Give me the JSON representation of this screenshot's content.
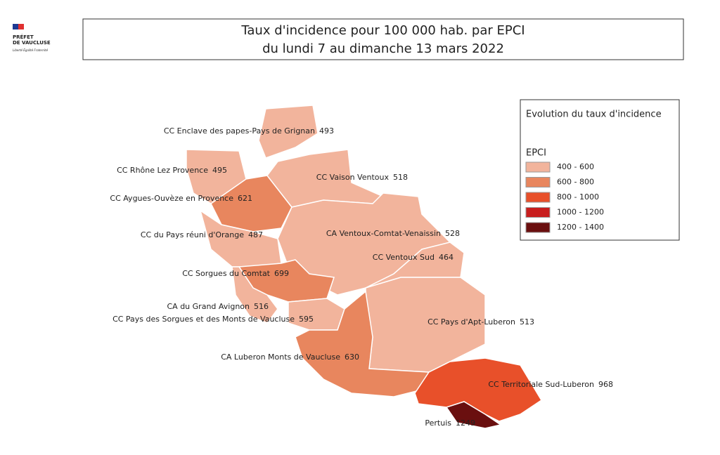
{
  "header": {
    "logo_line1": "PRÉFET",
    "logo_line2": "DE VAUCLUSE",
    "motto": "Liberté Égalité Fraternité"
  },
  "title": {
    "line1": "Taux d'incidence pour 100 000 hab. par EPCI",
    "line2": "du lundi 7 au dimanche 13 mars 2022"
  },
  "legend": {
    "title": "Evolution du taux d'incidence",
    "subtitle": "EPCI",
    "items": [
      {
        "label": "400 - 600",
        "color": "#f2b49c"
      },
      {
        "label": "600 - 800",
        "color": "#e8865e"
      },
      {
        "label": "800 - 1000",
        "color": "#e8502a"
      },
      {
        "label": "1000 - 1200",
        "color": "#c81e1e"
      },
      {
        "label": "1200 - 1400",
        "color": "#6a0f0f"
      }
    ]
  },
  "regions": [
    {
      "name": "CC Enclave des papes-Pays de Grignan",
      "value": 493
    },
    {
      "name": "CC Rhône Lez Provence",
      "value": 495
    },
    {
      "name": "CC Aygues-Ouvèze en Provence",
      "value": 621
    },
    {
      "name": "CC Vaison Ventoux",
      "value": 518
    },
    {
      "name": "CA Ventoux-Comtat-Venaissin",
      "value": 528
    },
    {
      "name": "CC du Pays réuni d'Orange",
      "value": 487
    },
    {
      "name": "CC Ventoux Sud",
      "value": 464
    },
    {
      "name": "CC Sorgues du Comtat",
      "value": 699
    },
    {
      "name": "CA du Grand Avignon",
      "value": 516
    },
    {
      "name": "CC Pays des Sorgues et des Monts de Vaucluse",
      "value": 595
    },
    {
      "name": "CC Pays d'Apt-Luberon",
      "value": 513
    },
    {
      "name": "CA Luberon Monts de Vaucluse",
      "value": 630
    },
    {
      "name": "CC Territoriale Sud-Luberon",
      "value": 968
    },
    {
      "name": "Pertuis",
      "value": 1249
    }
  ]
}
